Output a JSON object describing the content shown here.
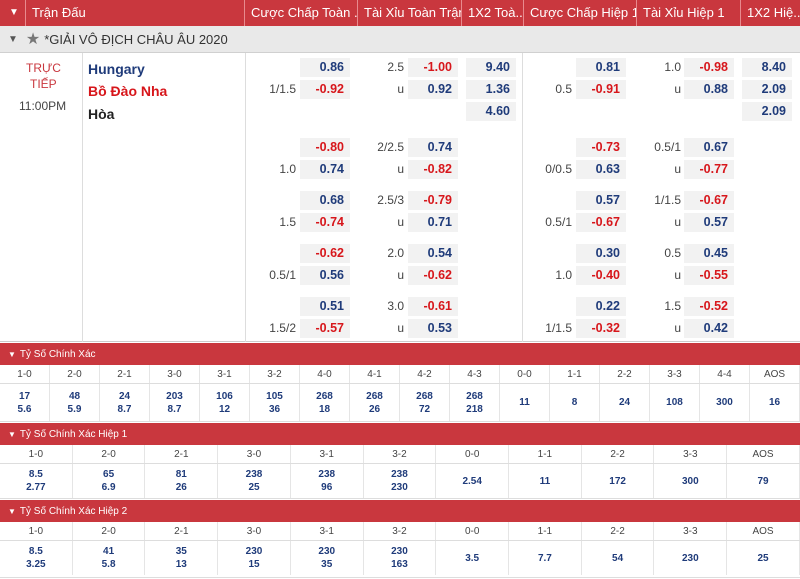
{
  "header": {
    "cols": [
      "Trận Đấu",
      "Cược Chấp Toàn ...",
      "Tài Xỉu Toàn Trận",
      "1X2 Toà...",
      "Cược Chấp Hiệp 1",
      "Tài Xỉu Hiệp 1",
      "1X2 Hiệ..."
    ]
  },
  "league": {
    "name": "*GIẢI VÔ ĐỊCH CHÂU ÂU 2020"
  },
  "match": {
    "status1": "TRỰC",
    "status2": "TIẾP",
    "time": "11:00PM",
    "home": "Hungary",
    "away": "Bồ Đào Nha",
    "draw": "Hòa"
  },
  "rows": [
    {
      "hdp_l": "1/1.5",
      "hdp_t": "0.86",
      "hdp_b": "-0.92",
      "ou_l": "2.5",
      "ou_u": "u",
      "ou_t": "-1.00",
      "ou_b": "0.92",
      "x1": "9.40",
      "x2": "1.36",
      "x3": "4.60",
      "h1_hdp_l": "0.5",
      "h1_hdp_t": "0.81",
      "h1_hdp_b": "-0.91",
      "h1_ou_l": "1.0",
      "h1_ou_u": "u",
      "h1_ou_t": "-0.98",
      "h1_ou_b": "0.88",
      "h1x1": "8.40",
      "h1x2": "2.09",
      "h1x3": "2.09"
    },
    {
      "hdp_l": "1.0",
      "hdp_t": "-0.80",
      "hdp_b": "0.74",
      "ou_l": "2/2.5",
      "ou_u": "u",
      "ou_t": "0.74",
      "ou_b": "-0.82",
      "h1_hdp_l": "0/0.5",
      "h1_hdp_t": "-0.73",
      "h1_hdp_b": "0.63",
      "h1_ou_l": "0.5/1",
      "h1_ou_u": "u",
      "h1_ou_t": "0.67",
      "h1_ou_b": "-0.77"
    },
    {
      "hdp_l": "1.5",
      "hdp_t": "0.68",
      "hdp_b": "-0.74",
      "ou_l": "2.5/3",
      "ou_u": "u",
      "ou_t": "-0.79",
      "ou_b": "0.71",
      "h1_hdp_l": "0.5/1",
      "h1_hdp_t": "0.57",
      "h1_hdp_b": "-0.67",
      "h1_ou_l": "1/1.5",
      "h1_ou_u": "u",
      "h1_ou_t": "-0.67",
      "h1_ou_b": "0.57"
    },
    {
      "hdp_l": "0.5/1",
      "hdp_t": "-0.62",
      "hdp_b": "0.56",
      "ou_l": "2.0",
      "ou_u": "u",
      "ou_t": "0.54",
      "ou_b": "-0.62",
      "h1_hdp_l": "1.0",
      "h1_hdp_t": "0.30",
      "h1_hdp_b": "-0.40",
      "h1_ou_l": "0.5",
      "h1_ou_u": "u",
      "h1_ou_t": "0.45",
      "h1_ou_b": "-0.55"
    },
    {
      "hdp_l": "1.5/2",
      "hdp_t": "0.51",
      "hdp_b": "-0.57",
      "ou_l": "3.0",
      "ou_u": "u",
      "ou_t": "-0.61",
      "ou_b": "0.53",
      "h1_hdp_l": "1/1.5",
      "h1_hdp_t": "0.22",
      "h1_hdp_b": "-0.32",
      "h1_ou_l": "1.5",
      "h1_ou_u": "u",
      "h1_ou_t": "-0.52",
      "h1_ou_b": "0.42"
    }
  ],
  "cs_full": {
    "title": "Tỷ Số Chính Xác",
    "heads": [
      "1-0",
      "2-0",
      "2-1",
      "3-0",
      "3-1",
      "3-2",
      "4-0",
      "4-1",
      "4-2",
      "4-3",
      "0-0",
      "1-1",
      "2-2",
      "3-3",
      "4-4",
      "AOS"
    ],
    "top": [
      "17",
      "48",
      "24",
      "203",
      "106",
      "105",
      "268",
      "268",
      "268",
      "268",
      "11",
      "8",
      "24",
      "108",
      "300",
      "16"
    ],
    "bot": [
      "5.6",
      "5.9",
      "8.7",
      "8.7",
      "12",
      "36",
      "18",
      "26",
      "72",
      "218",
      "",
      "",
      "",
      "",
      "",
      ""
    ]
  },
  "cs_h1": {
    "title": "Tỷ Số Chính Xác Hiệp 1",
    "heads": [
      "1-0",
      "2-0",
      "2-1",
      "3-0",
      "3-1",
      "3-2",
      "0-0",
      "1-1",
      "2-2",
      "3-3",
      "AOS"
    ],
    "top": [
      "8.5",
      "65",
      "81",
      "238",
      "238",
      "238",
      "2.54",
      "11",
      "172",
      "300",
      "79"
    ],
    "bot": [
      "2.77",
      "6.9",
      "26",
      "25",
      "96",
      "230",
      "",
      "",
      "",
      "",
      ""
    ]
  },
  "cs_h2": {
    "title": "Tỷ Số Chính Xác Hiệp 2",
    "heads": [
      "1-0",
      "2-0",
      "2-1",
      "3-0",
      "3-1",
      "3-2",
      "0-0",
      "1-1",
      "2-2",
      "3-3",
      "AOS"
    ],
    "top": [
      "8.5",
      "41",
      "35",
      "230",
      "230",
      "230",
      "3.5",
      "7.7",
      "54",
      "230",
      "25"
    ],
    "bot": [
      "3.25",
      "5.8",
      "13",
      "15",
      "35",
      "163",
      "",
      "",
      "",
      "",
      ""
    ]
  }
}
